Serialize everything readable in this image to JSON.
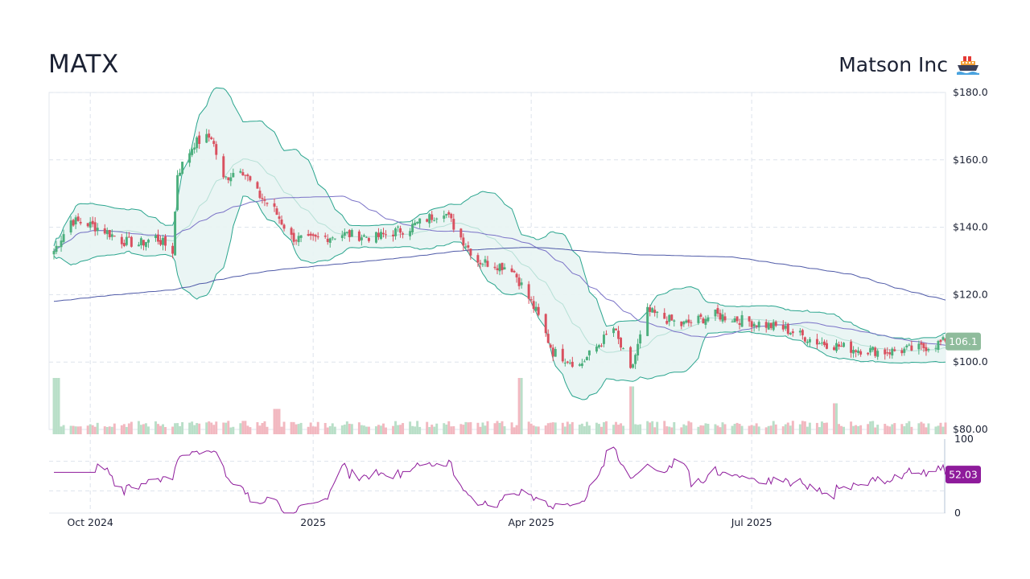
{
  "header": {
    "ticker": "MATX",
    "company": "Matson Inc",
    "company_icon": "ship-icon"
  },
  "chart_data": {
    "type": "candlestick",
    "price_axis": {
      "ylim": [
        80,
        180
      ],
      "ticks": [
        {
          "value": 180,
          "label": "$180.0"
        },
        {
          "value": 160,
          "label": "$160.0"
        },
        {
          "value": 140,
          "label": "$140.0"
        },
        {
          "value": 120,
          "label": "$120.0"
        },
        {
          "value": 100,
          "label": "$100.0"
        },
        {
          "value": 80,
          "label": "$80.00"
        }
      ]
    },
    "rsi_axis": {
      "ylim": [
        0,
        100
      ],
      "ticks": [
        {
          "value": 100,
          "label": "100"
        },
        {
          "value": 0,
          "label": "0"
        }
      ],
      "bands": [
        70,
        30
      ]
    },
    "x_axis": {
      "ticks": [
        {
          "date": "2024-10-01",
          "label": "Oct 2024"
        },
        {
          "date": "2025-01-01",
          "label": "2025"
        },
        {
          "date": "2025-04-01",
          "label": "Apr 2025"
        },
        {
          "date": "2025-07-01",
          "label": "Jul 2025"
        }
      ],
      "grid": true
    },
    "last_price": {
      "value": 106.1,
      "label": "106.1",
      "color": "#8fbc9c"
    },
    "last_rsi": {
      "value": 52.03,
      "label": "52.03",
      "color": "#8e1b9b"
    },
    "colors": {
      "up": "#4caf7d",
      "down": "#d9505f",
      "bollinger_band": "#2aa58e",
      "bollinger_fill": "#e8f4f3",
      "sma_short": "#7a72c7",
      "sma_long": "#4f5aa8",
      "rsi_line": "#8e1b9b",
      "volume_up": "#b9dfc8",
      "volume_down": "#f2b8c0"
    },
    "key_closes": [
      {
        "date": "2024-09-16",
        "close": 133
      },
      {
        "date": "2024-09-23",
        "close": 142
      },
      {
        "date": "2024-09-30",
        "close": 141
      },
      {
        "date": "2024-10-07",
        "close": 139
      },
      {
        "date": "2024-10-14",
        "close": 136
      },
      {
        "date": "2024-10-21",
        "close": 135
      },
      {
        "date": "2024-10-28",
        "close": 137
      },
      {
        "date": "2024-11-04",
        "close": 133
      },
      {
        "date": "2024-11-06",
        "close": 156
      },
      {
        "date": "2024-11-13",
        "close": 165
      },
      {
        "date": "2024-11-20",
        "close": 167
      },
      {
        "date": "2024-11-25",
        "close": 154
      },
      {
        "date": "2024-12-02",
        "close": 158
      },
      {
        "date": "2024-12-09",
        "close": 150
      },
      {
        "date": "2024-12-16",
        "close": 145
      },
      {
        "date": "2024-12-23",
        "close": 137
      },
      {
        "date": "2024-12-30",
        "close": 136
      },
      {
        "date": "2025-01-13",
        "close": 138
      },
      {
        "date": "2025-01-27",
        "close": 137
      },
      {
        "date": "2025-02-10",
        "close": 140
      },
      {
        "date": "2025-02-24",
        "close": 145
      },
      {
        "date": "2025-03-03",
        "close": 137
      },
      {
        "date": "2025-03-10",
        "close": 130
      },
      {
        "date": "2025-03-24",
        "close": 128
      },
      {
        "date": "2025-04-03",
        "close": 115
      },
      {
        "date": "2025-04-10",
        "close": 103
      },
      {
        "date": "2025-04-21",
        "close": 99
      },
      {
        "date": "2025-05-05",
        "close": 110
      },
      {
        "date": "2025-05-12",
        "close": 97
      },
      {
        "date": "2025-05-19",
        "close": 115
      },
      {
        "date": "2025-06-02",
        "close": 111
      },
      {
        "date": "2025-06-16",
        "close": 114
      },
      {
        "date": "2025-06-30",
        "close": 112
      },
      {
        "date": "2025-07-14",
        "close": 110
      },
      {
        "date": "2025-07-28",
        "close": 106
      },
      {
        "date": "2025-08-11",
        "close": 104
      },
      {
        "date": "2025-08-25",
        "close": 103
      },
      {
        "date": "2025-09-08",
        "close": 104
      },
      {
        "date": "2025-09-19",
        "close": 106.1
      }
    ],
    "volume_spikes": [
      {
        "date": "2024-09-17",
        "relative": 1.0
      },
      {
        "date": "2024-12-17",
        "relative": 0.45
      },
      {
        "date": "2025-03-28",
        "relative": 1.0
      },
      {
        "date": "2025-05-12",
        "relative": 0.85
      },
      {
        "date": "2025-08-04",
        "relative": 0.55
      }
    ]
  }
}
